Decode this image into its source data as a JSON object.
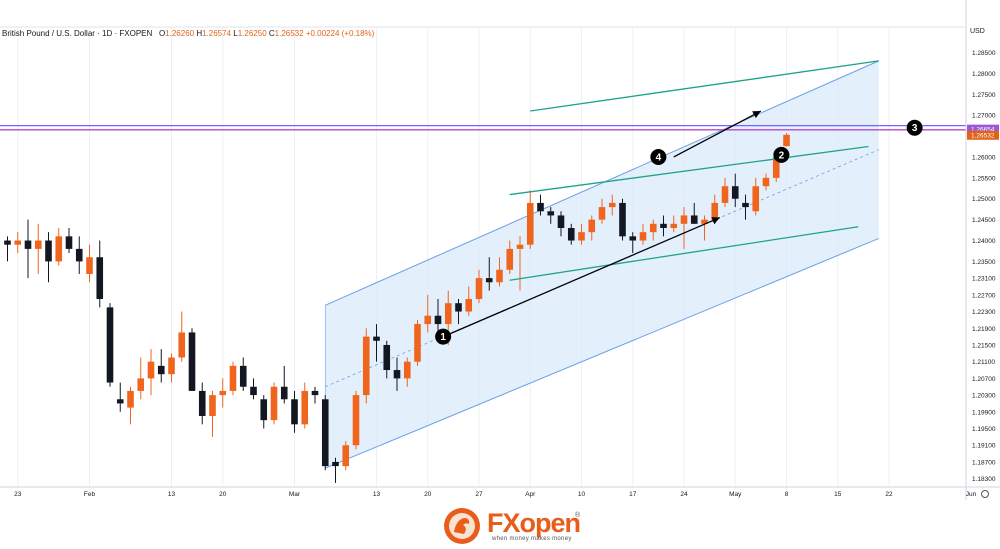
{
  "header": {
    "symbol": "British Pound / U.S. Dollar · 1D · FXOPEN",
    "o_label": "O",
    "o": "1.26260",
    "h_label": "H",
    "h": "1.26574",
    "l_label": "L",
    "l": "1.26250",
    "c_label": "C",
    "c": "1.26532",
    "change": "+0.00224 (+0.18%)"
  },
  "currency": "USD",
  "brand": {
    "name_fx": "FX",
    "name_open": "open",
    "tagline": "when money makes money",
    "registered": "®"
  },
  "colors": {
    "up": "#f0651e",
    "down": "#131722",
    "channel_fill": "#dbe9fb",
    "channel_line": "#6aa0e8",
    "teal": "#1ea38a",
    "magenta": "#b04dc9",
    "blue_hline": "#2962ff",
    "price_tag": "#e06218",
    "prev_tag": "#9c56d6"
  },
  "chart_data": {
    "type": "candlestick",
    "ylim": [
      1.181,
      1.288
    ],
    "y_ticks": [
      "1.28500",
      "1.28000",
      "1.27500",
      "1.27000",
      "1.26000",
      "1.25500",
      "1.25000",
      "1.24500",
      "1.24000",
      "1.23500",
      "1.23100",
      "1.22700",
      "1.22300",
      "1.21900",
      "1.21500",
      "1.21100",
      "1.20700",
      "1.20300",
      "1.19900",
      "1.19500",
      "1.19100",
      "1.18700",
      "1.18300"
    ],
    "x_ticks": [
      {
        "label": "23",
        "idx": 1
      },
      {
        "label": "Feb",
        "idx": 8
      },
      {
        "label": "13",
        "idx": 16
      },
      {
        "label": "20",
        "idx": 21
      },
      {
        "label": "Mar",
        "idx": 28
      },
      {
        "label": "13",
        "idx": 36
      },
      {
        "label": "20",
        "idx": 41
      },
      {
        "label": "27",
        "idx": 46
      },
      {
        "label": "Apr",
        "idx": 51
      },
      {
        "label": "10",
        "idx": 56
      },
      {
        "label": "17",
        "idx": 61
      },
      {
        "label": "24",
        "idx": 66
      },
      {
        "label": "May",
        "idx": 71
      },
      {
        "label": "8",
        "idx": 76
      },
      {
        "label": "15",
        "idx": 81
      },
      {
        "label": "22",
        "idx": 86
      },
      {
        "label": "Jun",
        "idx": 94
      }
    ],
    "candles": [
      [
        1.24,
        1.241,
        1.235,
        1.239
      ],
      [
        1.239,
        1.242,
        1.237,
        1.24
      ],
      [
        1.24,
        1.245,
        1.231,
        1.238
      ],
      [
        1.238,
        1.244,
        1.232,
        1.24
      ],
      [
        1.24,
        1.242,
        1.23,
        1.235
      ],
      [
        1.235,
        1.243,
        1.234,
        1.241
      ],
      [
        1.241,
        1.243,
        1.237,
        1.238
      ],
      [
        1.238,
        1.241,
        1.232,
        1.235
      ],
      [
        1.232,
        1.239,
        1.23,
        1.236
      ],
      [
        1.236,
        1.24,
        1.224,
        1.226
      ],
      [
        1.224,
        1.225,
        1.205,
        1.206
      ],
      [
        1.202,
        1.206,
        1.199,
        1.201
      ],
      [
        1.2,
        1.205,
        1.196,
        1.204
      ],
      [
        1.204,
        1.212,
        1.202,
        1.207
      ],
      [
        1.207,
        1.214,
        1.203,
        1.211
      ],
      [
        1.21,
        1.214,
        1.206,
        1.208
      ],
      [
        1.208,
        1.213,
        1.206,
        1.212
      ],
      [
        1.212,
        1.223,
        1.211,
        1.218
      ],
      [
        1.218,
        1.219,
        1.204,
        1.204
      ],
      [
        1.204,
        1.206,
        1.196,
        1.198
      ],
      [
        1.198,
        1.204,
        1.193,
        1.203
      ],
      [
        1.203,
        1.207,
        1.2,
        1.204
      ],
      [
        1.204,
        1.211,
        1.203,
        1.21
      ],
      [
        1.21,
        1.212,
        1.204,
        1.205
      ],
      [
        1.205,
        1.207,
        1.202,
        1.203
      ],
      [
        1.202,
        1.203,
        1.195,
        1.197
      ],
      [
        1.197,
        1.206,
        1.196,
        1.205
      ],
      [
        1.205,
        1.21,
        1.201,
        1.202
      ],
      [
        1.202,
        1.204,
        1.194,
        1.196
      ],
      [
        1.196,
        1.206,
        1.195,
        1.204
      ],
      [
        1.204,
        1.205,
        1.201,
        1.203
      ],
      [
        1.202,
        1.203,
        1.185,
        1.186
      ],
      [
        1.187,
        1.188,
        1.182,
        1.186
      ],
      [
        1.186,
        1.192,
        1.185,
        1.191
      ],
      [
        1.191,
        1.204,
        1.19,
        1.203
      ],
      [
        1.203,
        1.219,
        1.201,
        1.217
      ],
      [
        1.217,
        1.22,
        1.211,
        1.216
      ],
      [
        1.215,
        1.216,
        1.207,
        1.209
      ],
      [
        1.209,
        1.212,
        1.204,
        1.207
      ],
      [
        1.207,
        1.212,
        1.205,
        1.211
      ],
      [
        1.211,
        1.221,
        1.21,
        1.22
      ],
      [
        1.22,
        1.227,
        1.218,
        1.222
      ],
      [
        1.222,
        1.226,
        1.218,
        1.22
      ],
      [
        1.22,
        1.228,
        1.215,
        1.225
      ],
      [
        1.225,
        1.226,
        1.22,
        1.223
      ],
      [
        1.223,
        1.229,
        1.222,
        1.226
      ],
      [
        1.226,
        1.233,
        1.225,
        1.231
      ],
      [
        1.231,
        1.236,
        1.228,
        1.23
      ],
      [
        1.23,
        1.236,
        1.229,
        1.233
      ],
      [
        1.233,
        1.24,
        1.232,
        1.238
      ],
      [
        1.238,
        1.241,
        1.228,
        1.239
      ],
      [
        1.239,
        1.252,
        1.238,
        1.249
      ],
      [
        1.249,
        1.251,
        1.246,
        1.247
      ],
      [
        1.247,
        1.248,
        1.244,
        1.246
      ],
      [
        1.246,
        1.247,
        1.241,
        1.243
      ],
      [
        1.243,
        1.244,
        1.239,
        1.24
      ],
      [
        1.24,
        1.244,
        1.239,
        1.242
      ],
      [
        1.242,
        1.246,
        1.24,
        1.245
      ],
      [
        1.245,
        1.25,
        1.244,
        1.248
      ],
      [
        1.248,
        1.251,
        1.246,
        1.249
      ],
      [
        1.249,
        1.25,
        1.24,
        1.241
      ],
      [
        1.241,
        1.242,
        1.237,
        1.24
      ],
      [
        1.24,
        1.244,
        1.239,
        1.242
      ],
      [
        1.242,
        1.245,
        1.24,
        1.244
      ],
      [
        1.244,
        1.246,
        1.241,
        1.243
      ],
      [
        1.243,
        1.246,
        1.242,
        1.244
      ],
      [
        1.244,
        1.248,
        1.238,
        1.246
      ],
      [
        1.246,
        1.249,
        1.244,
        1.244
      ],
      [
        1.244,
        1.246,
        1.24,
        1.245
      ],
      [
        1.245,
        1.251,
        1.244,
        1.249
      ],
      [
        1.249,
        1.255,
        1.248,
        1.253
      ],
      [
        1.253,
        1.256,
        1.248,
        1.25
      ],
      [
        1.249,
        1.251,
        1.245,
        1.248
      ],
      [
        1.247,
        1.255,
        1.246,
        1.253
      ],
      [
        1.253,
        1.256,
        1.252,
        1.255
      ],
      [
        1.255,
        1.261,
        1.254,
        1.26
      ],
      [
        1.2626,
        1.2657,
        1.2625,
        1.2653
      ]
    ],
    "horizontal_lines": [
      {
        "price": 1.2665,
        "color": "#b04dc9",
        "label": "1.26654"
      },
      {
        "price": 1.2675,
        "color": "#7b61ff"
      }
    ],
    "current_price": {
      "price": 1.26532,
      "label": "1.26532"
    },
    "prev_price": {
      "price": 1.26654,
      "label": "1.26654"
    },
    "channel": {
      "x0": 31,
      "lower0": 1.1855,
      "upper0": 1.2245,
      "x1": 85,
      "lower1": 1.2405,
      "upper1": 1.283
    },
    "wedge_lines": [
      {
        "x0": 49,
        "y0": 1.251,
        "x1": 84,
        "y1": 1.2625
      },
      {
        "x0": 49,
        "y0": 1.2305,
        "x1": 83,
        "y1": 1.2433
      },
      {
        "x0": 51,
        "y0": 1.271,
        "x1": 85,
        "y1": 1.283
      }
    ],
    "arrows": [
      {
        "x0": 43,
        "y0": 1.2175,
        "x1": 69.5,
        "y1": 1.2455
      },
      {
        "x0": 65,
        "y0": 1.26,
        "x1": 73.5,
        "y1": 1.271
      }
    ],
    "markers": [
      {
        "label": "1",
        "x": 42.5,
        "y": 1.217
      },
      {
        "label": "2",
        "x": 75.5,
        "y": 1.2605
      },
      {
        "label": "3",
        "x": 88.5,
        "y": 1.267
      },
      {
        "label": "4",
        "x": 63.5,
        "y": 1.26
      }
    ]
  }
}
